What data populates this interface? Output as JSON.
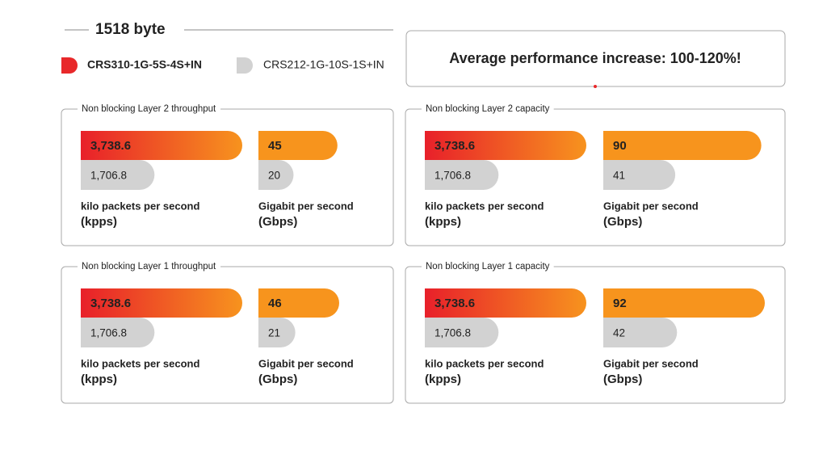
{
  "header": {
    "title": "1518 byte",
    "legend": [
      {
        "name": "CRS310-1G-5S-4S+IN",
        "color": "#e8282a"
      },
      {
        "name": "CRS212-1G-10S-1S+IN",
        "color": "#d2d2d2"
      }
    ],
    "banner": "Average performance increase: 100-120%!"
  },
  "panels": [
    {
      "title": "Non blocking Layer 2 throughput",
      "metrics": [
        {
          "values": [
            3738.6,
            1706.8
          ],
          "value_labels": [
            "3,738.6",
            "1,706.8"
          ],
          "unit": "kilo packets per second",
          "unit_abbr": "(kpps)"
        },
        {
          "values": [
            45,
            20
          ],
          "unit": "Gigabit per second",
          "unit_abbr": "(Gbps)"
        }
      ]
    },
    {
      "title": "Non blocking Layer 2 capacity",
      "metrics": [
        {
          "values": [
            3738.6,
            1706.8
          ],
          "value_labels": [
            "3,738.6",
            "1,706.8"
          ],
          "unit": "kilo packets per second",
          "unit_abbr": "(kpps)"
        },
        {
          "values": [
            90,
            41
          ],
          "unit": "Gigabit per second",
          "unit_abbr": "(Gbps)"
        }
      ]
    },
    {
      "title": "Non blocking Layer 1 throughput",
      "metrics": [
        {
          "values": [
            3738.6,
            1706.8
          ],
          "value_labels": [
            "3,738.6",
            "1,706.8"
          ],
          "unit": "kilo packets per second",
          "unit_abbr": "(kpps)"
        },
        {
          "values": [
            46,
            21
          ],
          "unit": "Gigabit per second",
          "unit_abbr": "(Gbps)"
        }
      ]
    },
    {
      "title": "Non blocking Layer 1 capacity",
      "metrics": [
        {
          "values": [
            3738.6,
            1706.8
          ],
          "value_labels": [
            "3,738.6",
            "1,706.8"
          ],
          "unit": "kilo packets per second",
          "unit_abbr": "(kpps)"
        },
        {
          "values": [
            92,
            42
          ],
          "unit": "Gigabit per second",
          "unit_abbr": "(Gbps)"
        }
      ]
    }
  ]
}
